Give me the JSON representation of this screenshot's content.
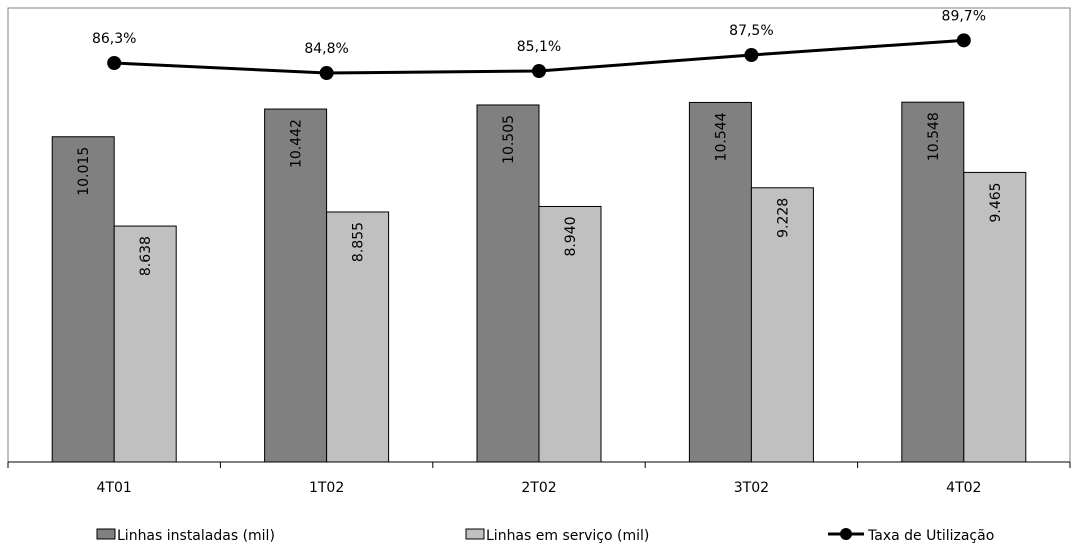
{
  "chart_data": {
    "type": "bar",
    "categories": [
      "4T01",
      "1T02",
      "2T02",
      "3T02",
      "4T02"
    ],
    "series": [
      {
        "name": "Linhas instaladas (mil)",
        "values": [
          10015,
          10442,
          10505,
          10544,
          10548
        ],
        "labels": [
          "10.015",
          "10.442",
          "10.505",
          "10.544",
          "10.548"
        ],
        "color": "#808080"
      },
      {
        "name": "Linhas em serviço (mil)",
        "values": [
          8638,
          8855,
          8940,
          9228,
          9465
        ],
        "labels": [
          "8.638",
          "8.855",
          "8.940",
          "9.228",
          "9.465"
        ],
        "color": "#c0c0c0"
      }
    ],
    "line_series": {
      "name": "Taxa de Utilização",
      "values": [
        86.3,
        84.8,
        85.1,
        87.5,
        89.7
      ],
      "labels": [
        "86,3%",
        "84,8%",
        "85,1%",
        "87,5%",
        "89,7%"
      ],
      "color": "#000000"
    },
    "ylim_bars": [
      5000,
      12000
    ],
    "legend_position": "bottom",
    "grid": false
  }
}
